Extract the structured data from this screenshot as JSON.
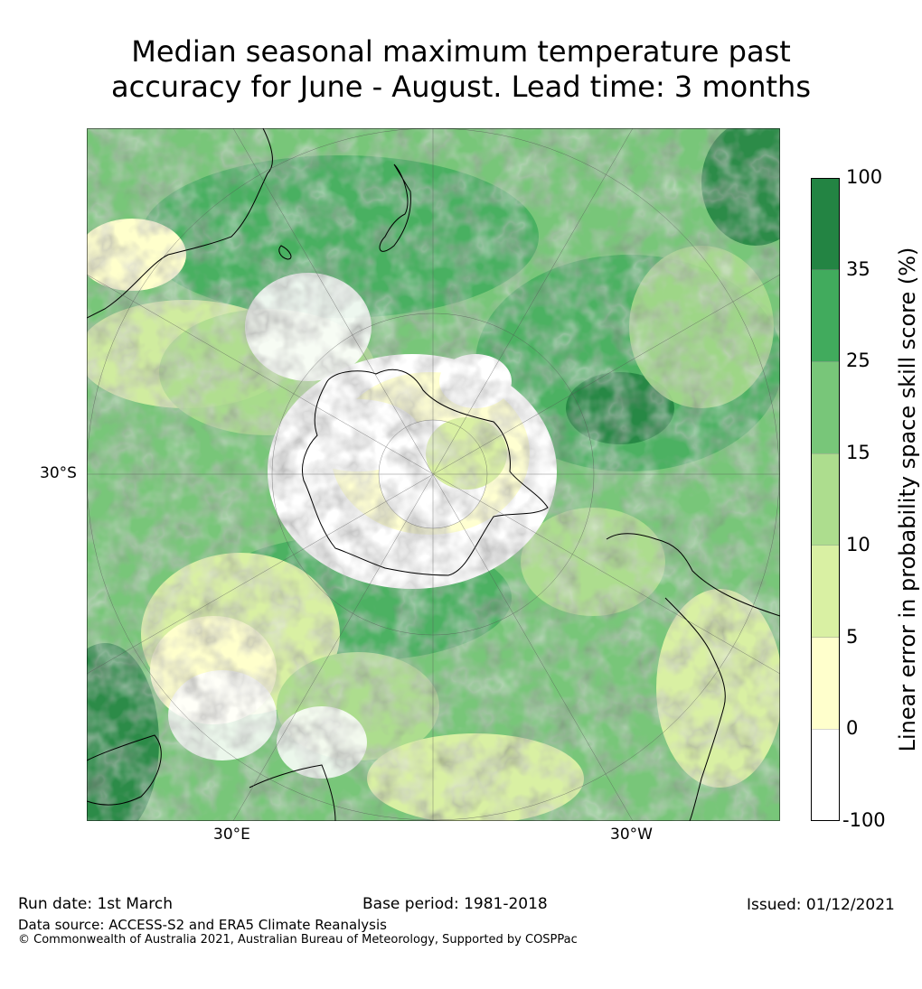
{
  "title_line1": "Median seasonal maximum temperature past",
  "title_line2": "accuracy for June - August. Lead time: 3 months",
  "map": {
    "projection": "south-polar-stereographic",
    "labels": {
      "lat": "30°S",
      "lon_east": "30°E",
      "lon_west": "30°W"
    },
    "features": [
      "Antarctica",
      "Australia",
      "New Zealand",
      "South America",
      "Southern Africa"
    ]
  },
  "colorbar": {
    "title": "Linear error in probability space skill score (%)",
    "ticks": [
      "100",
      "35",
      "25",
      "15",
      "10",
      "5",
      "0",
      "-100"
    ],
    "colors": [
      "#ffffff",
      "#ffffcc",
      "#d9f0a3",
      "#addd8e",
      "#78c679",
      "#41ab5d",
      "#238443"
    ]
  },
  "footer": {
    "run_date": "Run date: 1st March",
    "base_period": "Base period: 1981-2018",
    "issued": "Issued: 01/12/2021",
    "data_source": "Data source: ACCESS-S2 and ERA5 Climate Reanalysis",
    "copyright": "© Commonwealth of Australia 2021, Australian Bureau of Meteorology, Supported by COSPPac"
  }
}
